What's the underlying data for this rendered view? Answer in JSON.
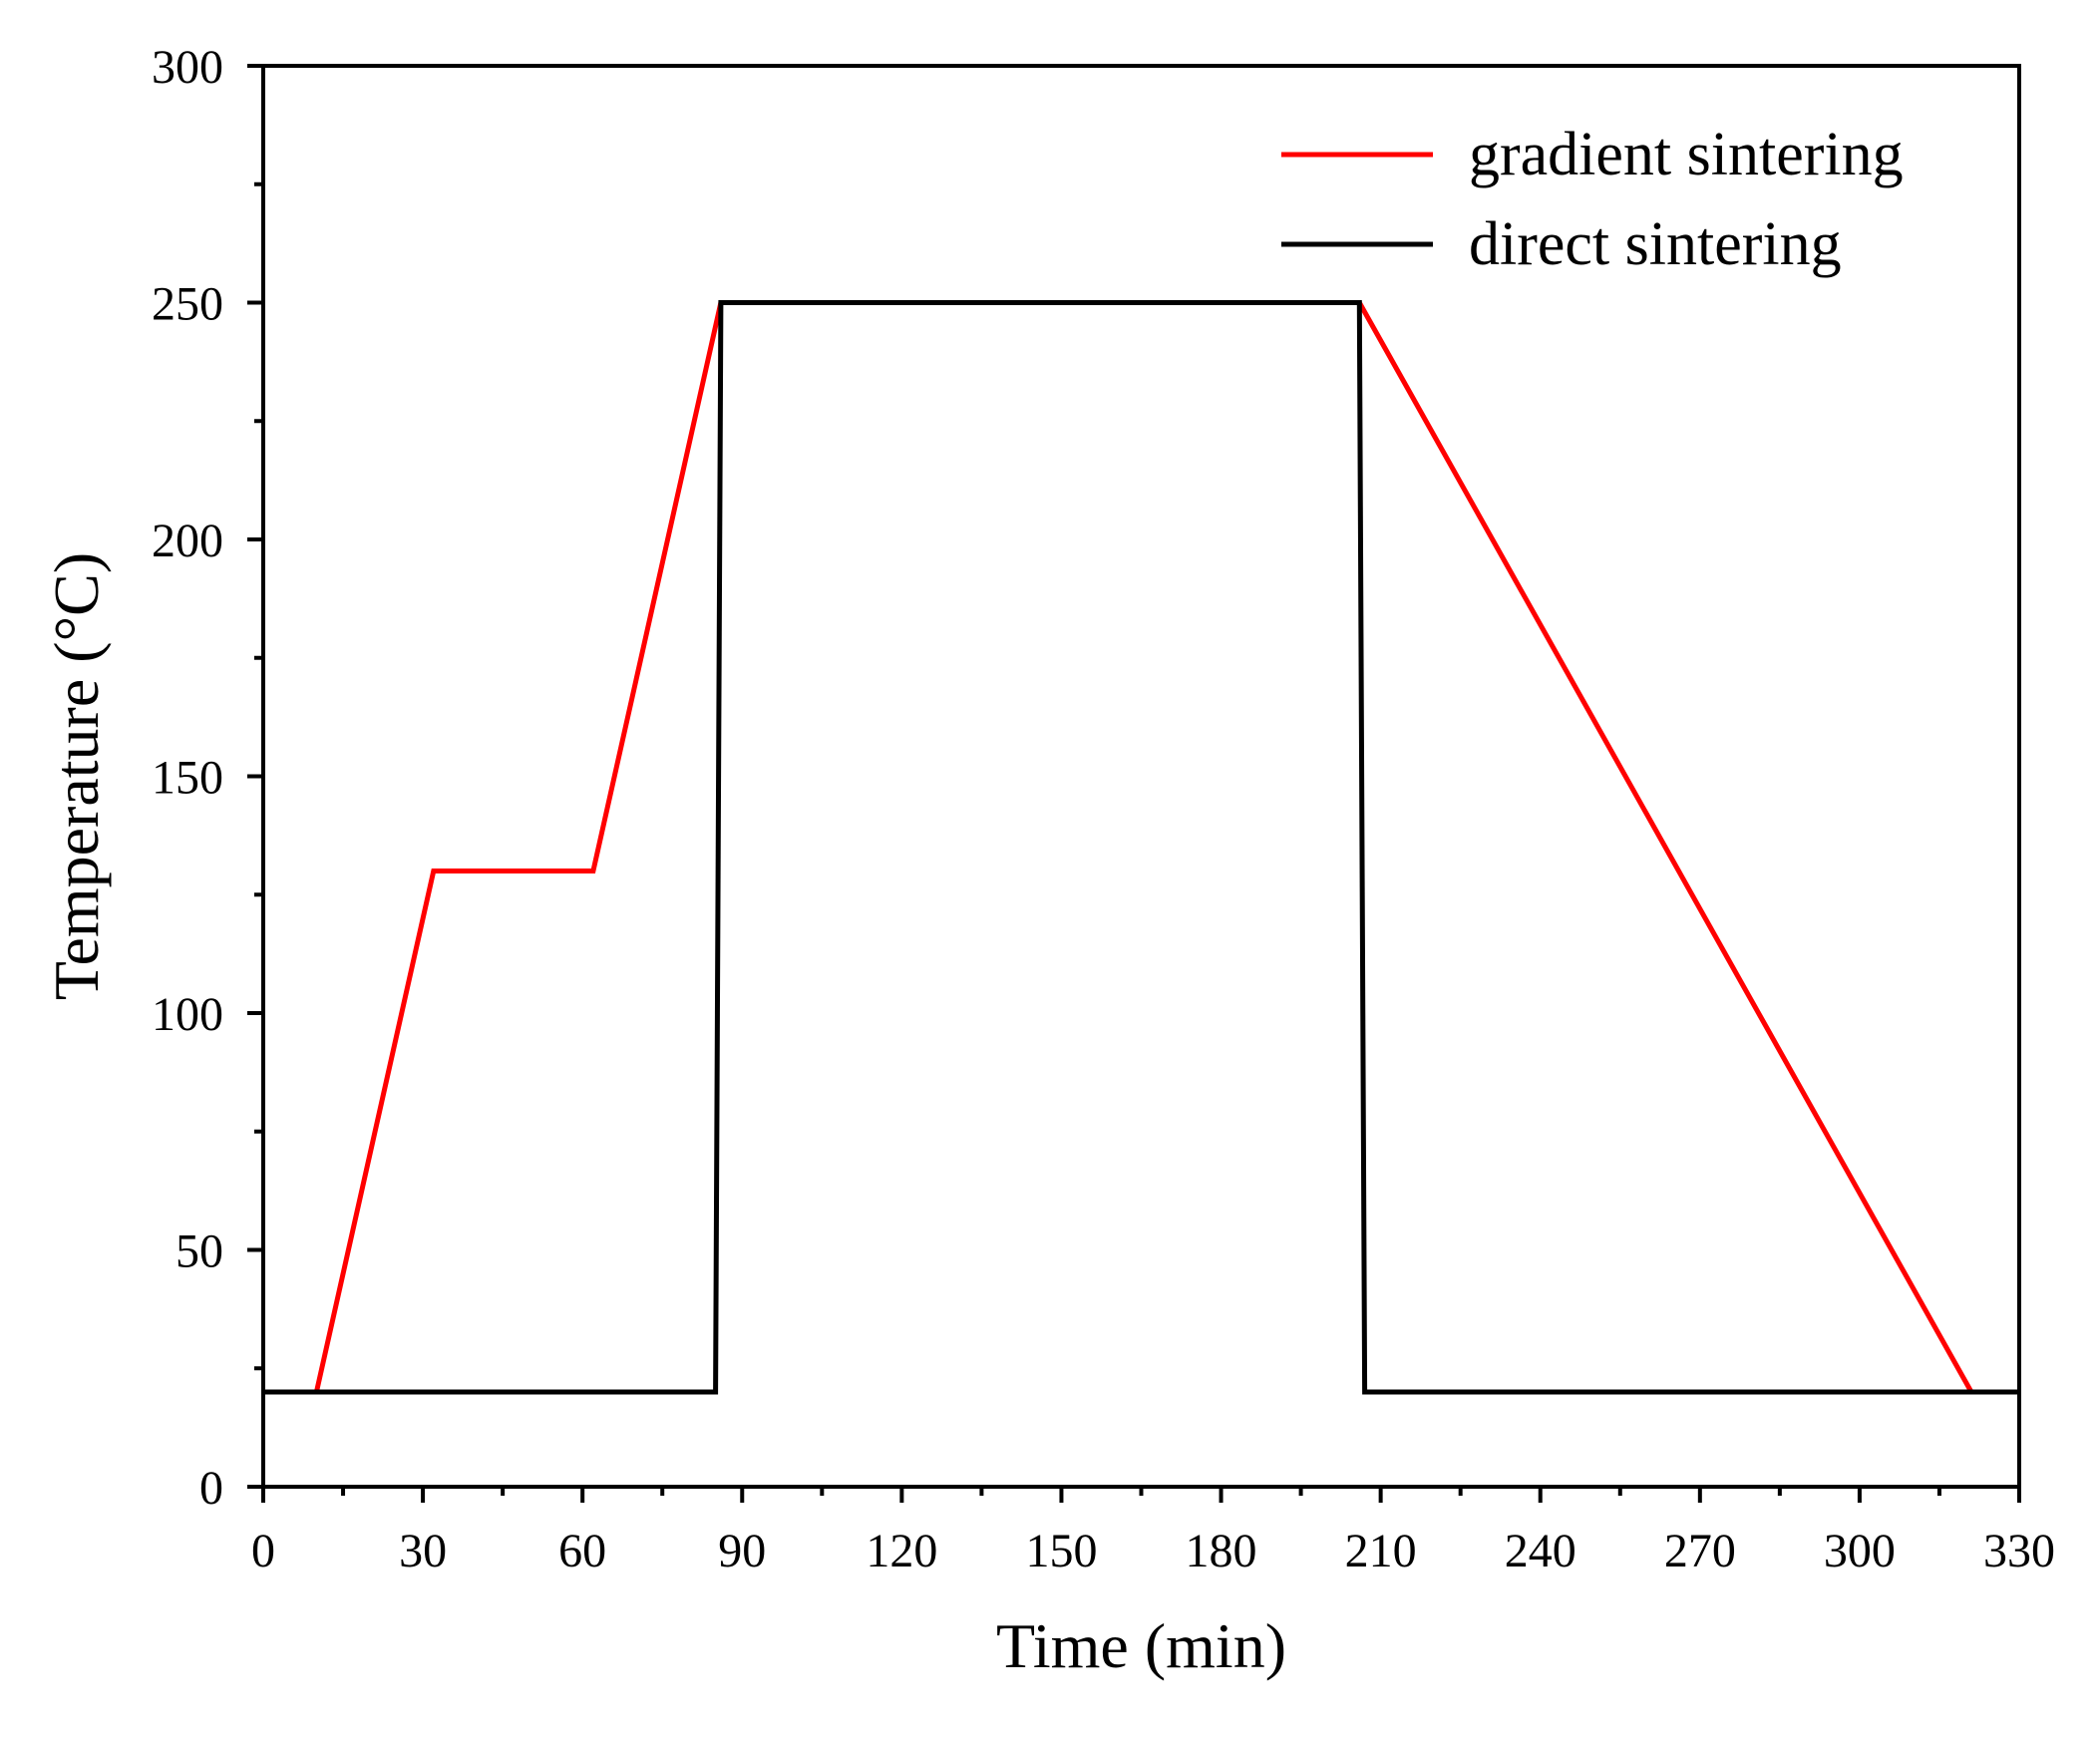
{
  "chart_data": {
    "type": "line",
    "title": "",
    "xlabel": "Time (min)",
    "ylabel": "Temperature (°C)",
    "xlim": [
      0,
      330
    ],
    "ylim": [
      0,
      300
    ],
    "xticks": [
      0,
      30,
      60,
      90,
      120,
      150,
      180,
      210,
      240,
      270,
      300,
      330
    ],
    "yticks": [
      0,
      50,
      100,
      150,
      200,
      250,
      300
    ],
    "x_minor_step": 15,
    "y_minor_step": 25,
    "grid": false,
    "legend_position": "top-right",
    "series": [
      {
        "name": "gradient sintering",
        "color": "#ff0000",
        "x": [
          10,
          32,
          62,
          86,
          206,
          321
        ],
        "y": [
          20,
          130,
          130,
          250,
          250,
          20
        ]
      },
      {
        "name": "direct sintering",
        "color": "#000000",
        "x": [
          0,
          85,
          86,
          206,
          207,
          330
        ],
        "y": [
          20,
          20,
          250,
          250,
          20,
          20
        ]
      }
    ]
  }
}
